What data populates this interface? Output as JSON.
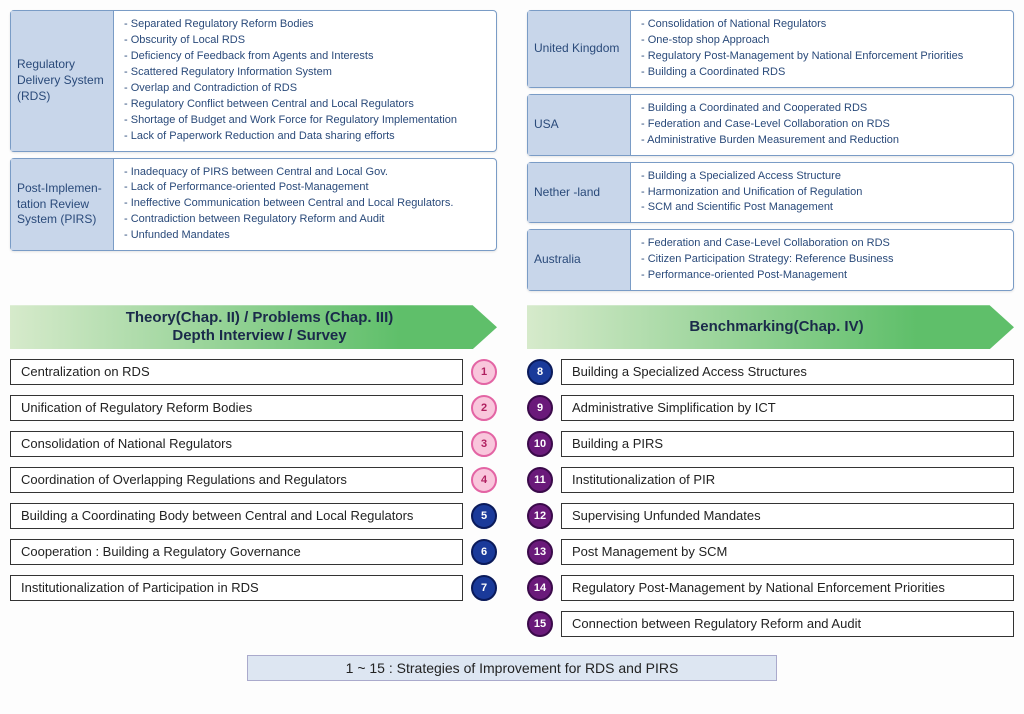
{
  "problems": [
    {
      "label": "Regulatory Delivery System (RDS)",
      "items": [
        "Separated Regulatory Reform Bodies",
        "Obscurity of Local RDS",
        "Deficiency of Feedback from Agents and Interests",
        "Scattered Regulatory Information System",
        "Overlap and Contradiction of RDS",
        "Regulatory Conflict between Central and Local Regulators",
        "Shortage of Budget and Work Force for Regulatory Implementation",
        "Lack of Paperwork Reduction and Data sharing efforts"
      ]
    },
    {
      "label": "Post-Implemen-tation Review System (PIRS)",
      "items": [
        "Inadequacy of PIRS between Central and Local Gov.",
        "Lack of Performance-oriented Post-Management",
        "Ineffective Communication between Central and Local Regulators.",
        "Contradiction between Regulatory Reform and Audit",
        "Unfunded Mandates"
      ]
    }
  ],
  "countries": [
    {
      "label": "United Kingdom",
      "items": [
        "Consolidation of National Regulators",
        "One-stop shop Approach",
        "Regulatory Post-Management by National Enforcement Priorities",
        "Building a Coordinated RDS"
      ]
    },
    {
      "label": "USA",
      "items": [
        "Building a Coordinated and Cooperated RDS",
        "Federation and Case-Level Collaboration on RDS",
        "Administrative Burden Measurement and Reduction"
      ]
    },
    {
      "label": "Nether -land",
      "items": [
        "Building a Specialized Access Structure",
        "Harmonization and Unification of Regulation",
        "SCM and Scientific Post Management"
      ]
    },
    {
      "label": "Australia",
      "items": [
        "Federation and Case-Level Collaboration on RDS",
        "Citizen Participation Strategy: Reference Business",
        "Performance-oriented Post-Management"
      ]
    }
  ],
  "arrowLeft": "Theory(Chap. II) / Problems (Chap. III)\nDepth Interview / Survey",
  "arrowRight": "Benchmarking(Chap. IV)",
  "stratLeft": [
    {
      "n": "1",
      "c": "pink",
      "t": "Centralization on RDS"
    },
    {
      "n": "2",
      "c": "pink",
      "t": "Unification of Regulatory Reform Bodies"
    },
    {
      "n": "3",
      "c": "pink",
      "t": "Consolidation of National Regulators"
    },
    {
      "n": "4",
      "c": "pink",
      "t": "Coordination of Overlapping Regulations and Regulators"
    },
    {
      "n": "5",
      "c": "blue",
      "t": "Building a Coordinating Body between Central and Local Regulators"
    },
    {
      "n": "6",
      "c": "blue",
      "t": "Cooperation : Building a Regulatory Governance"
    },
    {
      "n": "7",
      "c": "blue",
      "t": "Institutionalization of Participation in RDS"
    }
  ],
  "stratRight": [
    {
      "n": "8",
      "c": "blue",
      "t": "Building a Specialized Access Structures"
    },
    {
      "n": "9",
      "c": "purple",
      "t": "Administrative Simplification by ICT"
    },
    {
      "n": "10",
      "c": "purple",
      "t": "Building a PIRS"
    },
    {
      "n": "11",
      "c": "purple",
      "t": "Institutionalization of PIR"
    },
    {
      "n": "12",
      "c": "purple",
      "t": "Supervising Unfunded Mandates"
    },
    {
      "n": "13",
      "c": "purple",
      "t": "Post Management by SCM"
    },
    {
      "n": "14",
      "c": "purple",
      "t": "Regulatory Post-Management by National Enforcement Priorities"
    },
    {
      "n": "15",
      "c": "purple",
      "t": "Connection between Regulatory Reform and Audit"
    }
  ],
  "footer": "1 ~ 15 :  Strategies of Improvement for RDS and PIRS",
  "colors": {
    "labelBg": "#c8d6ea",
    "border": "#7a9cc6",
    "arrowGradStart": "#d6eacb",
    "arrowGradEnd": "#5fbf6a"
  }
}
